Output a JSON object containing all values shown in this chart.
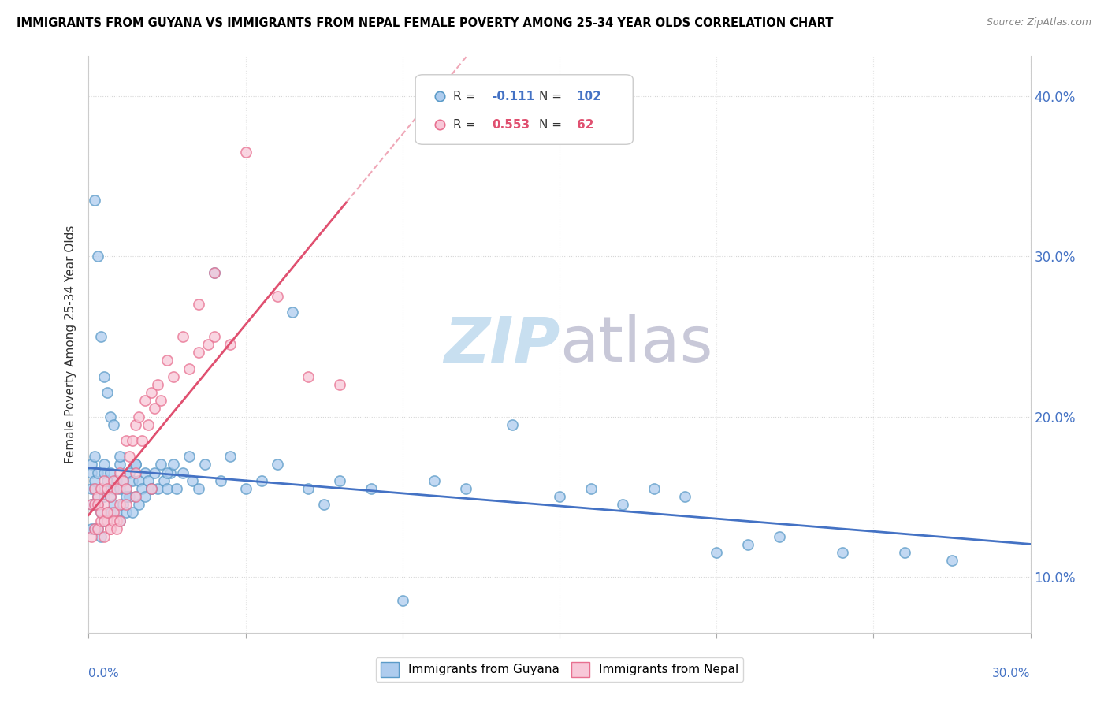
{
  "title": "IMMIGRANTS FROM GUYANA VS IMMIGRANTS FROM NEPAL FEMALE POVERTY AMONG 25-34 YEAR OLDS CORRELATION CHART",
  "source": "Source: ZipAtlas.com",
  "ylabel": "Female Poverty Among 25-34 Year Olds",
  "xlim": [
    0.0,
    0.3
  ],
  "ylim": [
    0.065,
    0.425
  ],
  "yticks": [
    0.1,
    0.2,
    0.3,
    0.4
  ],
  "ytick_labels": [
    "10.0%",
    "20.0%",
    "30.0%",
    "40.0%"
  ],
  "xticks": [
    0.0,
    0.05,
    0.1,
    0.15,
    0.2,
    0.25,
    0.3
  ],
  "color_guyana_fill": "#aeccee",
  "color_guyana_edge": "#5b9bc8",
  "color_nepal_fill": "#f8c8d8",
  "color_nepal_edge": "#e87090",
  "color_guyana_line": "#4472c4",
  "color_nepal_line": "#e05070",
  "watermark_zip_color": "#c8dff0",
  "watermark_atlas_color": "#c8c8d8",
  "guyana_x": [
    0.001,
    0.001,
    0.001,
    0.001,
    0.001,
    0.002,
    0.002,
    0.002,
    0.002,
    0.002,
    0.003,
    0.003,
    0.003,
    0.003,
    0.004,
    0.004,
    0.004,
    0.005,
    0.005,
    0.005,
    0.005,
    0.006,
    0.006,
    0.006,
    0.007,
    0.007,
    0.007,
    0.008,
    0.008,
    0.009,
    0.009,
    0.01,
    0.01,
    0.01,
    0.011,
    0.011,
    0.012,
    0.012,
    0.013,
    0.013,
    0.014,
    0.014,
    0.015,
    0.015,
    0.016,
    0.016,
    0.017,
    0.018,
    0.018,
    0.019,
    0.02,
    0.021,
    0.022,
    0.023,
    0.024,
    0.025,
    0.026,
    0.027,
    0.028,
    0.03,
    0.032,
    0.033,
    0.035,
    0.037,
    0.04,
    0.042,
    0.045,
    0.05,
    0.055,
    0.06,
    0.065,
    0.07,
    0.075,
    0.08,
    0.09,
    0.1,
    0.11,
    0.12,
    0.135,
    0.15,
    0.16,
    0.17,
    0.18,
    0.19,
    0.2,
    0.21,
    0.22,
    0.24,
    0.26,
    0.275,
    0.002,
    0.003,
    0.004,
    0.005,
    0.006,
    0.007,
    0.008,
    0.01,
    0.012,
    0.015,
    0.02,
    0.025
  ],
  "guyana_y": [
    0.155,
    0.17,
    0.145,
    0.13,
    0.165,
    0.175,
    0.155,
    0.145,
    0.13,
    0.16,
    0.165,
    0.145,
    0.13,
    0.15,
    0.155,
    0.14,
    0.125,
    0.165,
    0.15,
    0.135,
    0.17,
    0.155,
    0.14,
    0.16,
    0.15,
    0.165,
    0.14,
    0.155,
    0.145,
    0.16,
    0.14,
    0.17,
    0.155,
    0.135,
    0.16,
    0.145,
    0.155,
    0.14,
    0.165,
    0.15,
    0.16,
    0.14,
    0.17,
    0.15,
    0.16,
    0.145,
    0.155,
    0.165,
    0.15,
    0.16,
    0.155,
    0.165,
    0.155,
    0.17,
    0.16,
    0.155,
    0.165,
    0.17,
    0.155,
    0.165,
    0.175,
    0.16,
    0.155,
    0.17,
    0.29,
    0.16,
    0.175,
    0.155,
    0.16,
    0.17,
    0.265,
    0.155,
    0.145,
    0.16,
    0.155,
    0.085,
    0.16,
    0.155,
    0.195,
    0.15,
    0.155,
    0.145,
    0.155,
    0.15,
    0.115,
    0.12,
    0.125,
    0.115,
    0.115,
    0.11,
    0.335,
    0.3,
    0.25,
    0.225,
    0.215,
    0.2,
    0.195,
    0.175,
    0.15,
    0.17,
    0.155,
    0.165
  ],
  "nepal_x": [
    0.001,
    0.001,
    0.002,
    0.002,
    0.003,
    0.003,
    0.004,
    0.004,
    0.005,
    0.005,
    0.005,
    0.006,
    0.006,
    0.007,
    0.007,
    0.008,
    0.008,
    0.009,
    0.009,
    0.01,
    0.01,
    0.011,
    0.012,
    0.012,
    0.013,
    0.014,
    0.015,
    0.015,
    0.016,
    0.017,
    0.018,
    0.019,
    0.02,
    0.021,
    0.022,
    0.023,
    0.025,
    0.027,
    0.03,
    0.032,
    0.035,
    0.038,
    0.04,
    0.045,
    0.05,
    0.06,
    0.07,
    0.08,
    0.035,
    0.04,
    0.002,
    0.003,
    0.004,
    0.005,
    0.006,
    0.007,
    0.008,
    0.009,
    0.01,
    0.012,
    0.015,
    0.02
  ],
  "nepal_y": [
    0.145,
    0.125,
    0.155,
    0.13,
    0.15,
    0.13,
    0.155,
    0.135,
    0.16,
    0.145,
    0.125,
    0.155,
    0.135,
    0.15,
    0.13,
    0.16,
    0.14,
    0.155,
    0.135,
    0.165,
    0.145,
    0.16,
    0.185,
    0.155,
    0.175,
    0.185,
    0.195,
    0.165,
    0.2,
    0.185,
    0.21,
    0.195,
    0.215,
    0.205,
    0.22,
    0.21,
    0.235,
    0.225,
    0.25,
    0.23,
    0.24,
    0.245,
    0.25,
    0.245,
    0.365,
    0.275,
    0.225,
    0.22,
    0.27,
    0.29,
    0.145,
    0.145,
    0.14,
    0.135,
    0.14,
    0.13,
    0.135,
    0.13,
    0.135,
    0.145,
    0.15,
    0.155
  ]
}
